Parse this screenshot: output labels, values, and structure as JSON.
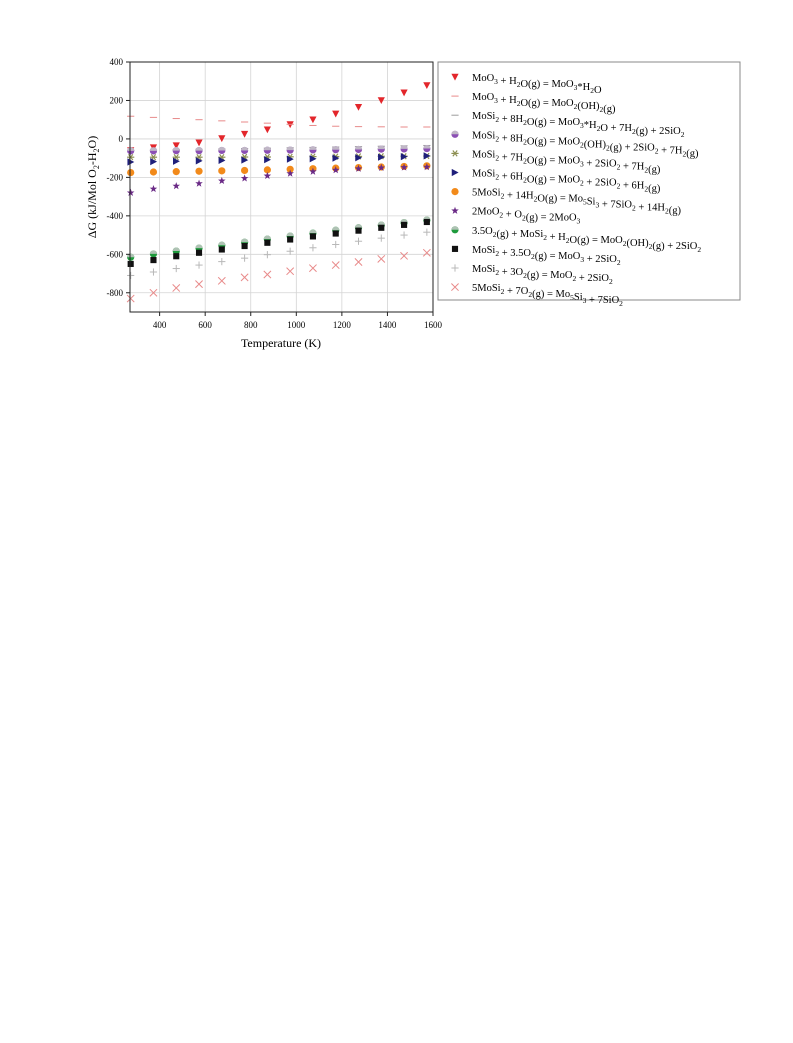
{
  "chart_data": {
    "type": "scatter",
    "xlabel": "Temperature (K)",
    "ylabel": "ΔG (kJ/Mol O2-H2O)",
    "xlim": [
      270,
      1600
    ],
    "ylim": [
      -900,
      400
    ],
    "xticks": [
      400,
      600,
      800,
      1000,
      1200,
      1400,
      1600
    ],
    "yticks": [
      400,
      200,
      0,
      -200,
      -400,
      -600,
      -800
    ],
    "grid": true,
    "legend_position": "right",
    "x": [
      273,
      373,
      473,
      573,
      673,
      773,
      873,
      973,
      1073,
      1173,
      1273,
      1373,
      1473,
      1573
    ],
    "series": [
      {
        "name": "MoO3 + H2O(g) = MoO3*H2O",
        "marker": "triangle-down",
        "color": "#e3262b",
        "values": [
          -60,
          -45,
          -35,
          -20,
          2,
          25,
          48,
          75,
          100,
          130,
          165,
          200,
          240,
          278
        ]
      },
      {
        "name": "MoO3 + H2O(g) = MoO2(OH)2(g)",
        "marker": "dash",
        "color": "#e88a8a",
        "values": [
          118,
          112,
          106,
          100,
          94,
          88,
          82,
          76,
          70,
          66,
          64,
          63,
          62,
          62
        ]
      },
      {
        "name": "MoSi2 + 8H2O(g) = MoO3*H2O + 7H2(g) + 2SiO2",
        "marker": "dash",
        "color": "#9c9c9c",
        "values": [
          -60,
          -58,
          -56,
          -54,
          -52,
          -50,
          -48,
          -46,
          -44,
          -42,
          -40,
          -38,
          -36,
          -34
        ]
      },
      {
        "name": "MoSi2 + 8H2O(g) = MoO2(OH)2(g) + 2SiO2 + 7H2(g)",
        "marker": "circle-half",
        "color": "#8b4fb4",
        "values": [
          -62,
          -62,
          -61,
          -61,
          -60,
          -60,
          -59,
          -58,
          -57,
          -56,
          -55,
          -53,
          -52,
          -50
        ]
      },
      {
        "name": "MoSi2 + 7H2O(g) = MoO3 + 2SiO2 + 7H2(g)",
        "marker": "asterisk",
        "color": "#8d8f52",
        "values": [
          -95,
          -95,
          -95,
          -95,
          -95,
          -94,
          -94,
          -93,
          -92,
          -92,
          -91,
          -90,
          -90,
          -89
        ]
      },
      {
        "name": "MoSi2 + 6H2O(g) = MoO2 + 2SiO2 + 6H2(g)",
        "marker": "triangle-right",
        "color": "#1f1f7a",
        "values": [
          -120,
          -118,
          -116,
          -114,
          -112,
          -110,
          -108,
          -105,
          -103,
          -100,
          -98,
          -95,
          -92,
          -88
        ]
      },
      {
        "name": "5MoSi2 + 14H2O(g) = Mo5Si3 + 7SiO2 + 14H2(g)",
        "marker": "circle",
        "color": "#f28a1a",
        "values": [
          -175,
          -172,
          -170,
          -168,
          -166,
          -164,
          -161,
          -158,
          -155,
          -152,
          -149,
          -146,
          -143,
          -140
        ]
      },
      {
        "name": "2MoO2 + O2(g) = 2MoO3",
        "marker": "star",
        "color": "#6a2a86",
        "values": [
          -280,
          -260,
          -245,
          -232,
          -218,
          -205,
          -192,
          -180,
          -170,
          -162,
          -155,
          -150,
          -148,
          -146
        ]
      },
      {
        "name": "3.5O2(g) + MoSi2 + H2O(g) = MoO2(OH)2(g) + 2SiO2",
        "marker": "circle-half",
        "color": "#1e9a3c",
        "values": [
          -615,
          -598,
          -583,
          -568,
          -553,
          -537,
          -521,
          -505,
          -490,
          -475,
          -462,
          -448,
          -435,
          -422
        ]
      },
      {
        "name": "MoSi2 + 3.5O2(g) = MoO3 + 2SiO2",
        "marker": "square",
        "color": "#111111",
        "values": [
          -650,
          -630,
          -610,
          -592,
          -575,
          -557,
          -540,
          -523,
          -507,
          -492,
          -477,
          -462,
          -447,
          -432
        ]
      },
      {
        "name": "MoSi2 + 3O2(g) = MoO2 + 2SiO2",
        "marker": "plus",
        "color": "#b8b8b8",
        "values": [
          -710,
          -692,
          -674,
          -656,
          -638,
          -620,
          -602,
          -584,
          -566,
          -549,
          -532,
          -516,
          -500,
          -485
        ]
      },
      {
        "name": "5MoSi2 + 7O2(g) = Mo5Si3 + 7SiO2",
        "marker": "cross",
        "color": "#e88a8a",
        "values": [
          -830,
          -800,
          -775,
          -755,
          -738,
          -720,
          -705,
          -688,
          -672,
          -656,
          -640,
          -624,
          -608,
          -592
        ]
      }
    ]
  }
}
